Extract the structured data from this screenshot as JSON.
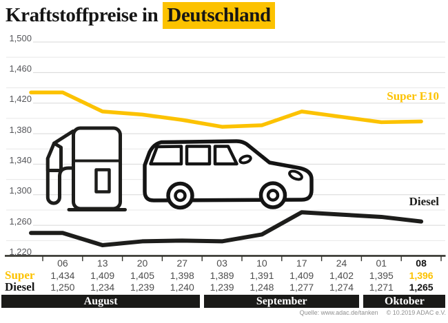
{
  "title": {
    "prefix": "Kraftstoffpreise in",
    "highlight": "Deutschland"
  },
  "colors": {
    "yellow": "#fcc200",
    "black_line": "#1d1d1b",
    "grid_major": "#d7d7d7",
    "grid_minor": "#e7e7e7",
    "axis": "#2a2a24",
    "tick": "#33332c",
    "value_gray": "#4d4d4d",
    "ylabel_gray": "#55565a",
    "month_bg": "#1a1a18",
    "emphasis_black": "#111111"
  },
  "chart_data": {
    "type": "line",
    "title": "Kraftstoffpreise in Deutschland",
    "x_tick_labels": [
      "06",
      "13",
      "20",
      "27",
      "03",
      "10",
      "17",
      "24",
      "01",
      "08"
    ],
    "months": [
      {
        "label": "August",
        "columns": 4
      },
      {
        "label": "September",
        "columns": 4
      },
      {
        "label": "Oktober",
        "columns": 2
      }
    ],
    "y_axis": {
      "min": 1220,
      "max": 1500,
      "grid_step": 20,
      "label_step": 40,
      "tick_labels": [
        "1,220",
        "1,260",
        "1,300",
        "1,340",
        "1,380",
        "1,420",
        "1,460",
        "1,500"
      ]
    },
    "series": [
      {
        "name": "Super E10",
        "table_label": "Super",
        "color": "#fcc200",
        "values": [
          1434,
          1409,
          1405,
          1398,
          1389,
          1391,
          1409,
          1402,
          1395,
          1396
        ],
        "display": [
          "1,434",
          "1,409",
          "1,405",
          "1,398",
          "1,389",
          "1,391",
          "1,409",
          "1,402",
          "1,395",
          "1,396"
        ]
      },
      {
        "name": "Diesel",
        "table_label": "Diesel",
        "color": "#1d1d1b",
        "values": [
          1250,
          1234,
          1239,
          1240,
          1239,
          1248,
          1277,
          1274,
          1271,
          1265
        ],
        "display": [
          "1,250",
          "1,234",
          "1,239",
          "1,240",
          "1,239",
          "1,248",
          "1,277",
          "1,274",
          "1,271",
          "1,265"
        ]
      }
    ],
    "legend_position": "labels-at-line-right"
  },
  "source": {
    "left": "Quelle: www.adac.de/tanken",
    "right": "© 10.2019 ADAC e.V."
  }
}
